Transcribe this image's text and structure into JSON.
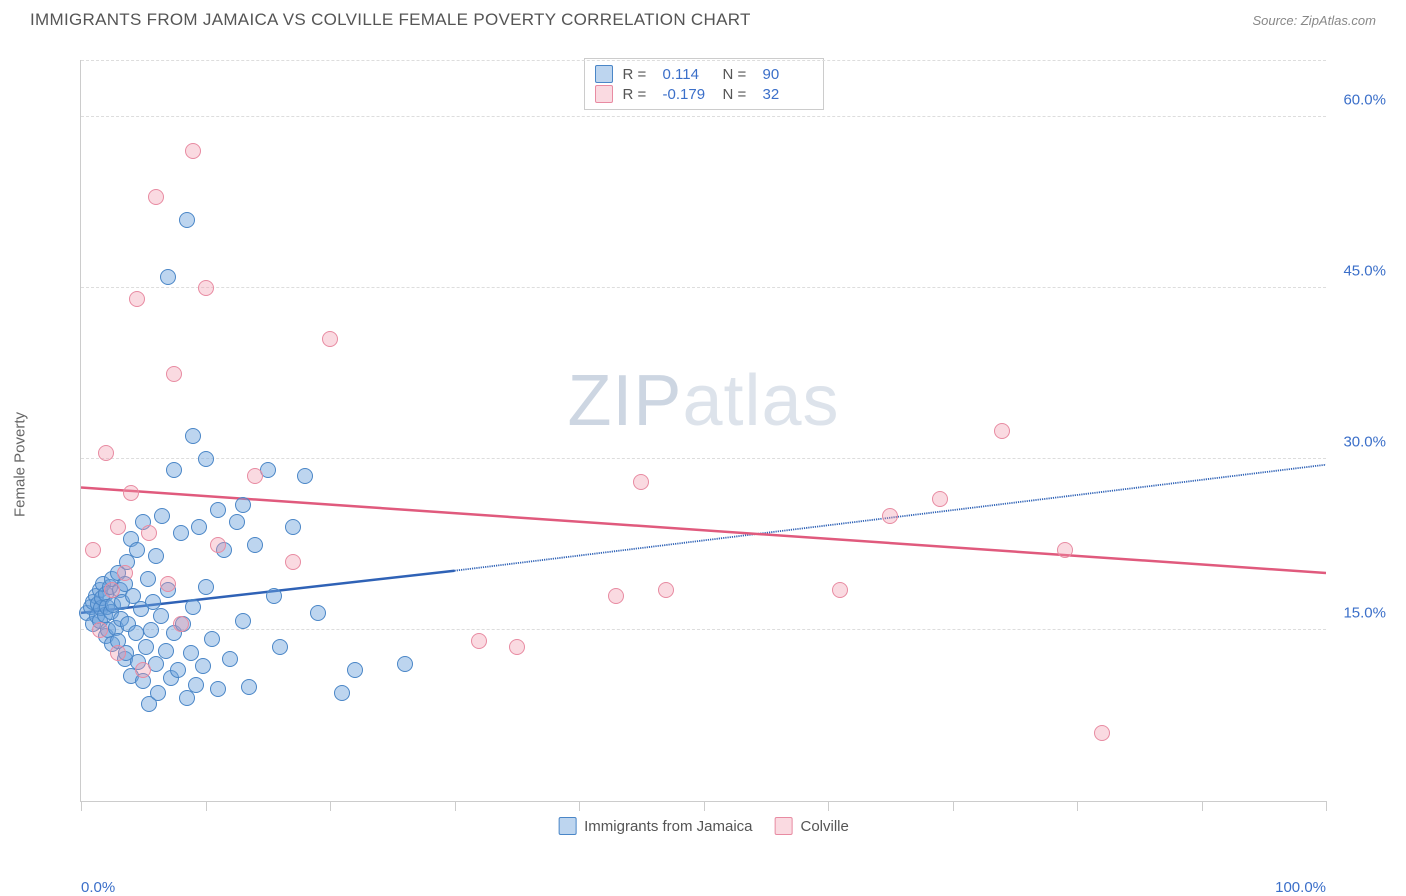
{
  "header": {
    "title": "IMMIGRANTS FROM JAMAICA VS COLVILLE FEMALE POVERTY CORRELATION CHART",
    "source_prefix": "Source: ",
    "source": "ZipAtlas.com"
  },
  "chart": {
    "type": "scatter",
    "ylabel": "Female Poverty",
    "xlim": [
      0,
      100
    ],
    "ylim": [
      0,
      65
    ],
    "yticks": [
      {
        "v": 15,
        "label": "15.0%"
      },
      {
        "v": 30,
        "label": "30.0%"
      },
      {
        "v": 45,
        "label": "45.0%"
      },
      {
        "v": 60,
        "label": "60.0%"
      }
    ],
    "xticks_minor": [
      0,
      10,
      20,
      30,
      40,
      50,
      60,
      70,
      80,
      90,
      100
    ],
    "xticks": [
      {
        "v": 0,
        "label": "0.0%"
      },
      {
        "v": 100,
        "label": "100.0%"
      }
    ],
    "background_color": "#ffffff",
    "grid_color": "#dddddd",
    "axis_color": "#cccccc",
    "tick_label_color": "#3b6fc9",
    "marker_radius": 8,
    "watermark": {
      "pre": "ZIP",
      "post": "atlas"
    },
    "series": [
      {
        "name": "Immigrants from Jamaica",
        "color_fill": "rgba(108,162,220,0.45)",
        "color_border": "#4a86c7",
        "R": "0.114",
        "N": "90",
        "trend": {
          "x1": 0,
          "y1": 16.5,
          "x2_solid": 30,
          "y2_solid": 20.2,
          "x2": 100,
          "y2": 29.5,
          "color": "#2f62b6",
          "width": 2.5
        },
        "points": [
          [
            0.5,
            16.5
          ],
          [
            0.8,
            17
          ],
          [
            1,
            15.5
          ],
          [
            1,
            17.5
          ],
          [
            1.2,
            18
          ],
          [
            1.3,
            16.2
          ],
          [
            1.4,
            17.3
          ],
          [
            1.5,
            18.5
          ],
          [
            1.5,
            15.8
          ],
          [
            1.6,
            16.9
          ],
          [
            1.7,
            17.8
          ],
          [
            1.8,
            19
          ],
          [
            1.9,
            16.3
          ],
          [
            2,
            14.5
          ],
          [
            2,
            18.2
          ],
          [
            2.1,
            17
          ],
          [
            2.2,
            15
          ],
          [
            2.3,
            18.8
          ],
          [
            2.4,
            16.6
          ],
          [
            2.5,
            19.5
          ],
          [
            2.5,
            13.8
          ],
          [
            2.6,
            17.2
          ],
          [
            2.8,
            15.2
          ],
          [
            3,
            20
          ],
          [
            3,
            14
          ],
          [
            3.1,
            18.5
          ],
          [
            3.2,
            16
          ],
          [
            3.3,
            17.5
          ],
          [
            3.5,
            12.5
          ],
          [
            3.5,
            19
          ],
          [
            3.6,
            13
          ],
          [
            3.7,
            21
          ],
          [
            3.8,
            15.5
          ],
          [
            4,
            23
          ],
          [
            4,
            11
          ],
          [
            4.2,
            18
          ],
          [
            4.4,
            14.7
          ],
          [
            4.5,
            22
          ],
          [
            4.6,
            12.2
          ],
          [
            4.8,
            16.8
          ],
          [
            5,
            24.5
          ],
          [
            5,
            10.5
          ],
          [
            5.2,
            13.5
          ],
          [
            5.4,
            19.5
          ],
          [
            5.5,
            8.5
          ],
          [
            5.6,
            15
          ],
          [
            5.8,
            17.5
          ],
          [
            6,
            12
          ],
          [
            6,
            21.5
          ],
          [
            6.2,
            9.5
          ],
          [
            6.4,
            16.2
          ],
          [
            6.5,
            25
          ],
          [
            6.8,
            13.2
          ],
          [
            7,
            18.5
          ],
          [
            7,
            46
          ],
          [
            7.2,
            10.8
          ],
          [
            7.5,
            14.7
          ],
          [
            7.5,
            29
          ],
          [
            7.8,
            11.5
          ],
          [
            8,
            23.5
          ],
          [
            8.2,
            15.5
          ],
          [
            8.5,
            9
          ],
          [
            8.5,
            51
          ],
          [
            8.8,
            13
          ],
          [
            9,
            17
          ],
          [
            9,
            32
          ],
          [
            9.2,
            10.2
          ],
          [
            9.5,
            24
          ],
          [
            9.8,
            11.8
          ],
          [
            10,
            18.8
          ],
          [
            10,
            30
          ],
          [
            10.5,
            14.2
          ],
          [
            11,
            25.5
          ],
          [
            11,
            9.8
          ],
          [
            11.5,
            22
          ],
          [
            12,
            12.5
          ],
          [
            12.5,
            24.5
          ],
          [
            13,
            15.8
          ],
          [
            13,
            26
          ],
          [
            13.5,
            10
          ],
          [
            14,
            22.5
          ],
          [
            15,
            29
          ],
          [
            15.5,
            18
          ],
          [
            16,
            13.5
          ],
          [
            17,
            24
          ],
          [
            18,
            28.5
          ],
          [
            19,
            16.5
          ],
          [
            21,
            9.5
          ],
          [
            22,
            11.5
          ],
          [
            26,
            12
          ]
        ]
      },
      {
        "name": "Colville",
        "color_fill": "rgba(240,150,170,0.35)",
        "color_border": "#e88ba2",
        "R": "-0.179",
        "N": "32",
        "trend": {
          "x1": 0,
          "y1": 27.5,
          "x2_solid": 100,
          "y2_solid": 20,
          "x2": 100,
          "y2": 20,
          "color": "#e05a7d",
          "width": 2.5
        },
        "points": [
          [
            1,
            22
          ],
          [
            1.5,
            15
          ],
          [
            2,
            30.5
          ],
          [
            2.5,
            18.5
          ],
          [
            3,
            24
          ],
          [
            3,
            13
          ],
          [
            3.5,
            20
          ],
          [
            4,
            27
          ],
          [
            4.5,
            44
          ],
          [
            5,
            11.5
          ],
          [
            5.5,
            23.5
          ],
          [
            6,
            53
          ],
          [
            7,
            19
          ],
          [
            7.5,
            37.5
          ],
          [
            8,
            15.5
          ],
          [
            9,
            57
          ],
          [
            10,
            45
          ],
          [
            11,
            22.5
          ],
          [
            14,
            28.5
          ],
          [
            17,
            21
          ],
          [
            20,
            40.5
          ],
          [
            32,
            14
          ],
          [
            35,
            13.5
          ],
          [
            43,
            18
          ],
          [
            45,
            28
          ],
          [
            47,
            18.5
          ],
          [
            61,
            18.5
          ],
          [
            65,
            25
          ],
          [
            69,
            26.5
          ],
          [
            74,
            32.5
          ],
          [
            79,
            22
          ],
          [
            82,
            6
          ]
        ]
      }
    ],
    "legend_top": {
      "r_label": "R =",
      "n_label": "N ="
    },
    "legend_bottom_labels": [
      "Immigrants from Jamaica",
      "Colville"
    ]
  }
}
